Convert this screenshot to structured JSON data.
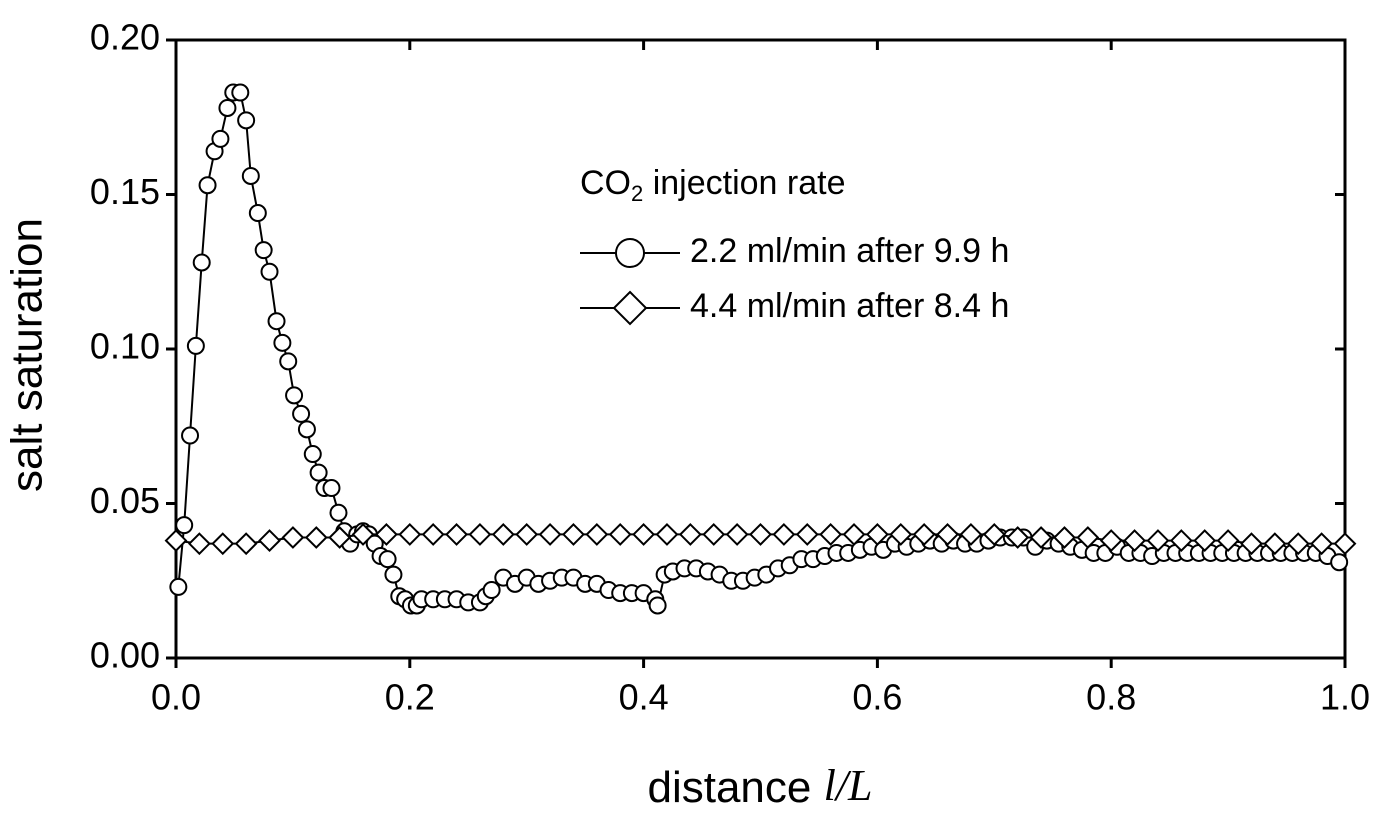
{
  "chart_data": {
    "type": "line",
    "xlabel": {
      "text": "distance",
      "variable": "l/L"
    },
    "ylabel": "salt saturation",
    "legend_title": [
      "CO",
      "2",
      " injection rate"
    ],
    "legend_position": "center right",
    "xlim": [
      0,
      1
    ],
    "ylim": [
      0,
      0.2
    ],
    "xticks": [
      {
        "value": 0,
        "label": "0.0"
      },
      0.2,
      0.4,
      0.6,
      0.8,
      {
        "value": 1,
        "label": "1.0"
      }
    ],
    "yticks": [
      {
        "value": 0,
        "label": "0.00"
      },
      {
        "value": 0.05,
        "label": "0.05"
      },
      {
        "value": 0.1,
        "label": "0.10"
      },
      {
        "value": 0.15,
        "label": "0.15"
      },
      {
        "value": 0.2,
        "label": "0.20"
      }
    ],
    "series": [
      {
        "name": "2.2 ml/min after 9.9 h",
        "color": "#000000",
        "marker": "circle",
        "x": [
          0.002,
          0.007,
          0.012,
          0.017,
          0.022,
          0.027,
          0.033,
          0.038,
          0.044,
          0.049,
          0.055,
          0.06,
          0.064,
          0.07,
          0.075,
          0.08,
          0.086,
          0.091,
          0.096,
          0.101,
          0.107,
          0.112,
          0.117,
          0.122,
          0.127,
          0.133,
          0.139,
          0.144,
          0.149,
          0.155,
          0.16,
          0.165,
          0.17,
          0.175,
          0.181,
          0.186,
          0.191,
          0.196,
          0.201,
          0.206,
          0.21,
          0.22,
          0.23,
          0.24,
          0.25,
          0.26,
          0.265,
          0.27,
          0.28,
          0.29,
          0.3,
          0.31,
          0.32,
          0.33,
          0.34,
          0.35,
          0.36,
          0.37,
          0.38,
          0.39,
          0.4,
          0.41,
          0.412,
          0.418,
          0.425,
          0.435,
          0.445,
          0.455,
          0.465,
          0.475,
          0.485,
          0.495,
          0.505,
          0.515,
          0.525,
          0.535,
          0.545,
          0.555,
          0.565,
          0.575,
          0.585,
          0.595,
          0.605,
          0.615,
          0.625,
          0.635,
          0.645,
          0.655,
          0.665,
          0.675,
          0.685,
          0.695,
          0.705,
          0.715,
          0.725,
          0.735,
          0.745,
          0.755,
          0.765,
          0.775,
          0.785,
          0.795,
          0.805,
          0.815,
          0.825,
          0.835,
          0.845,
          0.855,
          0.865,
          0.875,
          0.885,
          0.895,
          0.905,
          0.915,
          0.925,
          0.935,
          0.945,
          0.955,
          0.965,
          0.975,
          0.985,
          0.995
        ],
        "values": [
          0.023,
          0.043,
          0.072,
          0.101,
          0.128,
          0.153,
          0.164,
          0.168,
          0.178,
          0.183,
          0.183,
          0.174,
          0.156,
          0.144,
          0.132,
          0.125,
          0.109,
          0.102,
          0.096,
          0.085,
          0.079,
          0.074,
          0.066,
          0.06,
          0.055,
          0.055,
          0.047,
          0.041,
          0.037,
          0.04,
          0.041,
          0.04,
          0.037,
          0.033,
          0.032,
          0.027,
          0.02,
          0.019,
          0.017,
          0.017,
          0.019,
          0.019,
          0.019,
          0.019,
          0.018,
          0.018,
          0.02,
          0.022,
          0.026,
          0.024,
          0.026,
          0.024,
          0.025,
          0.026,
          0.026,
          0.024,
          0.024,
          0.022,
          0.021,
          0.021,
          0.021,
          0.019,
          0.017,
          0.027,
          0.028,
          0.029,
          0.029,
          0.028,
          0.027,
          0.025,
          0.025,
          0.026,
          0.027,
          0.029,
          0.03,
          0.032,
          0.032,
          0.033,
          0.034,
          0.034,
          0.035,
          0.036,
          0.035,
          0.037,
          0.036,
          0.037,
          0.038,
          0.037,
          0.038,
          0.037,
          0.037,
          0.038,
          0.039,
          0.039,
          0.039,
          0.036,
          0.038,
          0.037,
          0.036,
          0.035,
          0.034,
          0.034,
          0.036,
          0.034,
          0.034,
          0.033,
          0.034,
          0.034,
          0.034,
          0.034,
          0.034,
          0.034,
          0.034,
          0.034,
          0.034,
          0.034,
          0.034,
          0.034,
          0.034,
          0.034,
          0.033,
          0.031
        ]
      },
      {
        "name": "4.4 ml/min after 8.4 h",
        "color": "#000000",
        "marker": "diamond",
        "x": [
          0,
          0.02,
          0.04,
          0.06,
          0.08,
          0.1,
          0.12,
          0.14,
          0.16,
          0.18,
          0.2,
          0.22,
          0.24,
          0.26,
          0.28,
          0.3,
          0.32,
          0.34,
          0.36,
          0.38,
          0.4,
          0.42,
          0.44,
          0.46,
          0.48,
          0.5,
          0.52,
          0.54,
          0.56,
          0.58,
          0.6,
          0.62,
          0.64,
          0.66,
          0.68,
          0.7,
          0.72,
          0.74,
          0.76,
          0.78,
          0.8,
          0.82,
          0.84,
          0.86,
          0.88,
          0.9,
          0.92,
          0.94,
          0.96,
          0.98,
          1
        ],
        "values": [
          0.038,
          0.037,
          0.037,
          0.037,
          0.038,
          0.039,
          0.039,
          0.039,
          0.04,
          0.04,
          0.04,
          0.04,
          0.04,
          0.04,
          0.04,
          0.04,
          0.04,
          0.04,
          0.04,
          0.04,
          0.04,
          0.04,
          0.04,
          0.04,
          0.04,
          0.04,
          0.04,
          0.04,
          0.04,
          0.04,
          0.04,
          0.04,
          0.04,
          0.04,
          0.04,
          0.04,
          0.039,
          0.039,
          0.039,
          0.039,
          0.038,
          0.038,
          0.038,
          0.038,
          0.038,
          0.038,
          0.037,
          0.037,
          0.037,
          0.037,
          0.037
        ]
      }
    ]
  }
}
